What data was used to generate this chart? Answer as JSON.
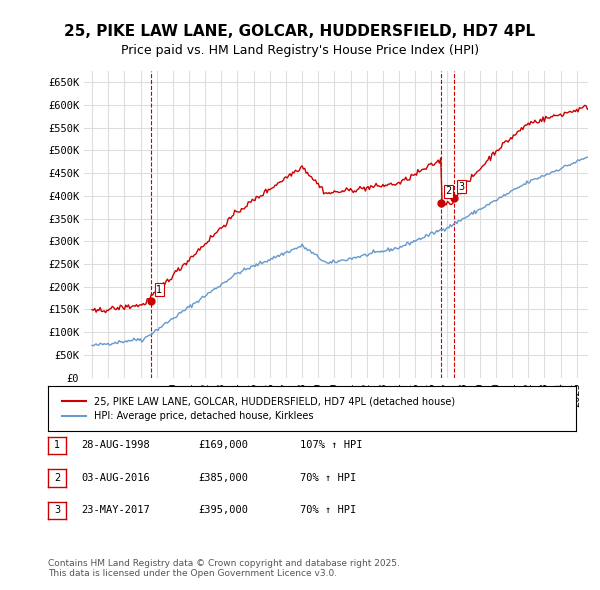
{
  "title": "25, PIKE LAW LANE, GOLCAR, HUDDERSFIELD, HD7 4PL",
  "subtitle": "Price paid vs. HM Land Registry's House Price Index (HPI)",
  "title_fontsize": 11,
  "subtitle_fontsize": 9,
  "background_color": "#ffffff",
  "grid_color": "#dddddd",
  "plot_bg_color": "#ffffff",
  "red_color": "#cc0000",
  "blue_color": "#6699cc",
  "purchase_dates": [
    "1998-08-28",
    "2016-08-03",
    "2017-05-23"
  ],
  "purchase_prices": [
    169000,
    385000,
    395000
  ],
  "purchase_labels": [
    "1",
    "2",
    "3"
  ],
  "vline_dates": [
    "1998-08-28",
    "2016-08-03",
    "2017-05-23"
  ],
  "legend_entries": [
    "25, PIKE LAW LANE, GOLCAR, HUDDERSFIELD, HD7 4PL (detached house)",
    "HPI: Average price, detached house, Kirklees"
  ],
  "table_rows": [
    [
      "1",
      "28-AUG-1998",
      "£169,000",
      "107% ↑ HPI"
    ],
    [
      "2",
      "03-AUG-2016",
      "£385,000",
      "70% ↑ HPI"
    ],
    [
      "3",
      "23-MAY-2017",
      "£395,000",
      "70% ↑ HPI"
    ]
  ],
  "footer_text": "Contains HM Land Registry data © Crown copyright and database right 2025.\nThis data is licensed under the Open Government Licence v3.0.",
  "ylim": [
    0,
    675000
  ],
  "yticks": [
    0,
    50000,
    100000,
    150000,
    200000,
    250000,
    300000,
    350000,
    400000,
    450000,
    500000,
    550000,
    600000,
    650000
  ],
  "ytick_labels": [
    "£0",
    "£50K",
    "£100K",
    "£150K",
    "£200K",
    "£250K",
    "£300K",
    "£350K",
    "£400K",
    "£450K",
    "£500K",
    "£550K",
    "£600K",
    "£650K"
  ],
  "xlim_start": 1994.5,
  "xlim_end": 2025.7
}
